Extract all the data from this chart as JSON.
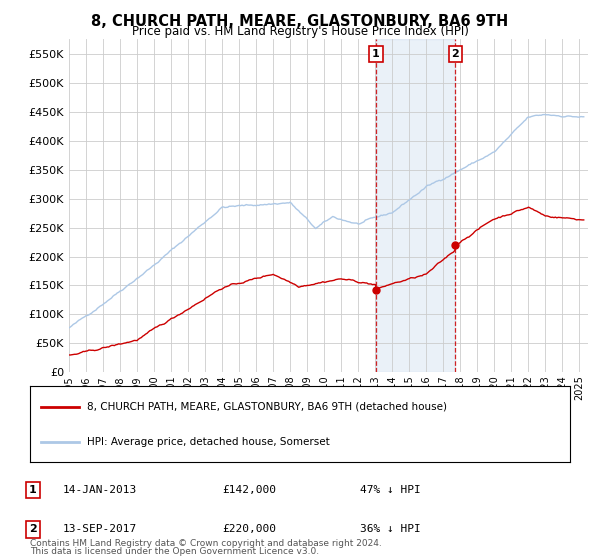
{
  "title": "8, CHURCH PATH, MEARE, GLASTONBURY, BA6 9TH",
  "subtitle": "Price paid vs. HM Land Registry's House Price Index (HPI)",
  "ylabel_ticks": [
    0,
    50000,
    100000,
    150000,
    200000,
    250000,
    300000,
    350000,
    400000,
    450000,
    500000,
    550000
  ],
  "ylim": [
    0,
    575000
  ],
  "xlim_start": 1995.0,
  "xlim_end": 2025.5,
  "hpi_color": "#adc8e6",
  "property_color": "#cc0000",
  "sale1_date": 2013.04,
  "sale1_price": 142000,
  "sale2_date": 2017.71,
  "sale2_price": 220000,
  "legend_property": "8, CHURCH PATH, MEARE, GLASTONBURY, BA6 9TH (detached house)",
  "legend_hpi": "HPI: Average price, detached house, Somerset",
  "annotation1_label": "14-JAN-2013",
  "annotation1_price": "£142,000",
  "annotation1_pct": "47% ↓ HPI",
  "annotation2_label": "13-SEP-2017",
  "annotation2_price": "£220,000",
  "annotation2_pct": "36% ↓ HPI",
  "footnote1": "Contains HM Land Registry data © Crown copyright and database right 2024.",
  "footnote2": "This data is licensed under the Open Government Licence v3.0.",
  "background_color": "#ffffff",
  "grid_color": "#cccccc"
}
